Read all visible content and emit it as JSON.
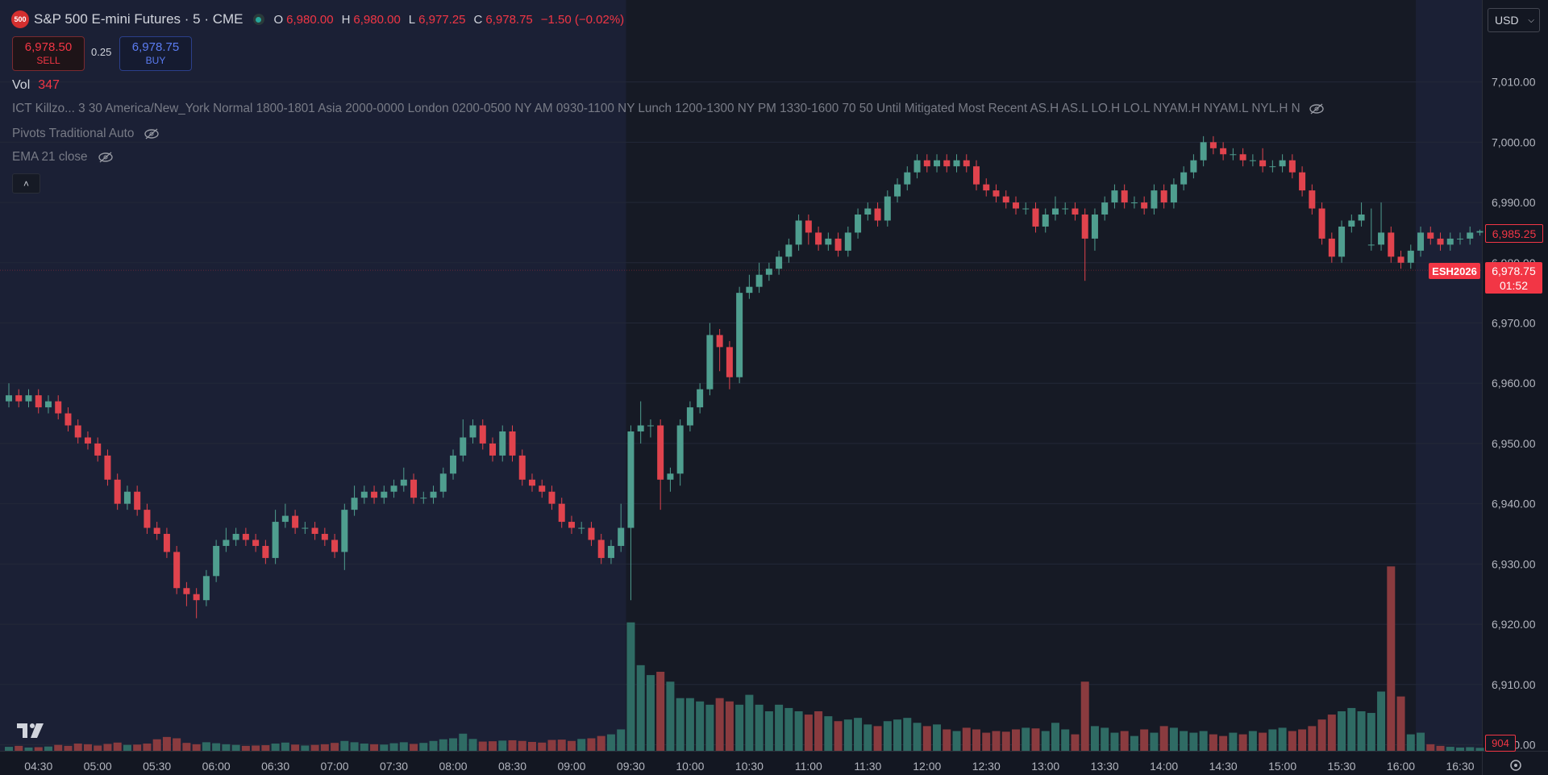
{
  "header": {
    "logo": "500",
    "symbol": "S&P 500 E-mini Futures · 5 · CME",
    "o_label": "O",
    "o": "6,980.00",
    "h_label": "H",
    "h": "6,980.00",
    "l_label": "L",
    "l": "6,977.25",
    "c_label": "C",
    "c": "6,978.75",
    "change": "−1.50 (−0.02%)",
    "currency": "USD"
  },
  "trade": {
    "sell_price": "6,978.50",
    "sell": "SELL",
    "spread": "0.25",
    "buy_price": "6,978.75",
    "buy": "BUY"
  },
  "indicators": {
    "vol_label": "Vol",
    "vol_value": 347,
    "ict": "ICT Killzo... 3 30 America/New_York Normal 1800-1801 Asia 2000-0000 London 0200-0500 NY AM 0930-1100 NY Lunch 1200-1300 NY PM 1330-1600 70 50 Until Mitigated Most Recent AS.H AS.L LO.H LO.L NYAM.H NYAM.L NYL.H N",
    "pivots": "Pivots Traditional Auto",
    "ema": "EMA 21 close"
  },
  "chart_data": {
    "type": "candlestick",
    "categories": [
      null,
      null,
      null,
      "04:30",
      null,
      null,
      null,
      null,
      null,
      "05:00",
      null,
      null,
      null,
      null,
      null,
      "05:30",
      null,
      null,
      null,
      null,
      null,
      "06:00",
      null,
      null,
      null,
      null,
      null,
      "06:30",
      null,
      null,
      null,
      null,
      null,
      "07:00",
      null,
      null,
      null,
      null,
      null,
      "07:30",
      null,
      null,
      null,
      null,
      null,
      "08:00",
      null,
      null,
      null,
      null,
      null,
      "08:30",
      null,
      null,
      null,
      null,
      null,
      "09:00",
      null,
      null,
      null,
      null,
      null,
      "09:30",
      null,
      null,
      null,
      null,
      null,
      "10:00",
      null,
      null,
      null,
      null,
      null,
      "10:30",
      null,
      null,
      null,
      null,
      null,
      "11:00",
      null,
      null,
      null,
      null,
      null,
      "11:30",
      null,
      null,
      null,
      null,
      null,
      "12:00",
      null,
      null,
      null,
      null,
      null,
      "12:30",
      null,
      null,
      null,
      null,
      null,
      "13:00",
      null,
      null,
      null,
      null,
      null,
      "13:30",
      null,
      null,
      null,
      null,
      null,
      "14:00",
      null,
      null,
      null,
      null,
      null,
      "14:30",
      null,
      null,
      null,
      null,
      null,
      "15:00",
      null,
      null,
      null,
      null,
      null,
      "15:30",
      null,
      null,
      null,
      null,
      null,
      "16:00",
      null,
      null,
      null,
      null,
      null,
      "16:30",
      null,
      null
    ],
    "open": [
      6957,
      6958,
      6957,
      6958,
      6956,
      6957,
      6955,
      6953,
      6951,
      6950,
      6948,
      6944,
      6940,
      6942,
      6939,
      6936,
      6935,
      6932,
      6926,
      6925,
      6924,
      6928,
      6933,
      6934,
      6935,
      6934,
      6933,
      6931,
      6937,
      6938,
      6936,
      6936,
      6935,
      6934,
      6932,
      6939,
      6941,
      6942,
      6941,
      6942,
      6943,
      6944,
      6941,
      6941,
      6942,
      6945,
      6948,
      6951,
      6953,
      6950,
      6948,
      6952,
      6948,
      6944,
      6943,
      6942,
      6940,
      6937,
      6936,
      6936,
      6934,
      6931,
      6933,
      6936,
      6952,
      6953,
      6953,
      6944,
      6945,
      6953,
      6956,
      6959,
      6968,
      6966,
      6961,
      6975,
      6976,
      6978,
      6979,
      6981,
      6983,
      6987,
      6985,
      6983,
      6984,
      6982,
      6985,
      6988,
      6989,
      6987,
      6991,
      6993,
      6995,
      6997,
      6996,
      6997,
      6996,
      6997,
      6996,
      6993,
      6992,
      6991,
      6990,
      6989,
      6989,
      6986,
      6988,
      6989,
      6989,
      6988,
      6984,
      6988,
      6990,
      6992,
      6990,
      6990,
      6989,
      6992,
      6990,
      6993,
      6995,
      6997,
      7000,
      6999,
      6998,
      6998,
      6997,
      6997,
      6996,
      6996,
      6997,
      6995,
      6992,
      6989,
      6984,
      6981,
      6986,
      6987,
      6983,
      6983,
      6985,
      6981,
      6980,
      6982,
      6985,
      6984,
      6983,
      6984,
      6984,
      6985
    ],
    "high": [
      6960,
      6959,
      6959,
      6959,
      6958,
      6958,
      6956,
      6954,
      6952,
      6951,
      6949,
      6945,
      6943,
      6943,
      6940,
      6937,
      6936,
      6933,
      6927,
      6926,
      6929,
      6934,
      6936,
      6936,
      6936,
      6935,
      6934,
      6939,
      6940,
      6939,
      6937,
      6937,
      6936,
      6935,
      6940,
      6943,
      6943,
      6943,
      6943,
      6944,
      6946,
      6945,
      6942,
      6943,
      6946,
      6949,
      6954,
      6954,
      6954,
      6951,
      6953,
      6953,
      6949,
      6945,
      6944,
      6943,
      6941,
      6938,
      6937,
      6937,
      6935,
      6934,
      6940,
      6953,
      6957,
      6954,
      6954,
      6946,
      6954,
      6957,
      6960,
      6970,
      6969,
      6967,
      6976,
      6978,
      6980,
      6980,
      6982,
      6984,
      6988,
      6988,
      6986,
      6985,
      6985,
      6986,
      6989,
      6990,
      6990,
      6992,
      6994,
      6996,
      6998,
      6998,
      6998,
      6998,
      6998,
      6998,
      6997,
      6994,
      6993,
      6992,
      6991,
      6990,
      6990,
      6989,
      6991,
      6990,
      6990,
      6989,
      6989,
      6991,
      6993,
      6993,
      6991,
      6991,
      6993,
      6993,
      6994,
      6996,
      6998,
      7001,
      7001,
      7000,
      6999,
      6999,
      6998,
      6999,
      6997,
      6998,
      6998,
      6996,
      6993,
      6990,
      6985,
      6987,
      6988,
      6990,
      6989,
      6990,
      6986,
      6982,
      6983,
      6986,
      6986,
      6985,
      6985,
      6985,
      6986,
      6985.5
    ],
    "low": [
      6956,
      6956,
      6956,
      6955,
      6955,
      6954,
      6952,
      6950,
      6949,
      6947,
      6943,
      6939,
      6939,
      6938,
      6935,
      6934,
      6931,
      6925,
      6923,
      6921,
      6923,
      6927,
      6932,
      6933,
      6933,
      6932,
      6930,
      6930,
      6936,
      6935,
      6935,
      6934,
      6933,
      6931,
      6929,
      6938,
      6940,
      6940,
      6940,
      6941,
      6942,
      6940,
      6940,
      6940,
      6941,
      6944,
      6947,
      6950,
      6949,
      6947,
      6947,
      6947,
      6943,
      6942,
      6941,
      6939,
      6936,
      6935,
      6935,
      6933,
      6930,
      6930,
      6932,
      6924,
      6950,
      6951,
      6939,
      6942,
      6943,
      6952,
      6955,
      6958,
      6962,
      6959,
      6960,
      6974,
      6975,
      6977,
      6978,
      6980,
      6982,
      6983,
      6982,
      6982,
      6981,
      6981,
      6984,
      6987,
      6986,
      6986,
      6990,
      6992,
      6994,
      6995,
      6995,
      6995,
      6995,
      6995,
      6992,
      6991,
      6990,
      6989,
      6988,
      6988,
      6985,
      6985,
      6987,
      6988,
      6987,
      6977,
      6982,
      6987,
      6989,
      6989,
      6989,
      6988,
      6988,
      6989,
      6989,
      6992,
      6994,
      6996,
      6998,
      6997,
      6997,
      6996,
      6996,
      6995,
      6995,
      6995,
      6994,
      6991,
      6988,
      6983,
      6980,
      6980,
      6985,
      6986,
      6982,
      6982,
      6980,
      6979,
      6979,
      6981,
      6983,
      6982,
      6982,
      6983,
      6983,
      6984.5
    ],
    "close": [
      6958,
      6957,
      6958,
      6956,
      6957,
      6955,
      6953,
      6951,
      6950,
      6948,
      6944,
      6940,
      6942,
      6939,
      6936,
      6935,
      6932,
      6926,
      6925,
      6924,
      6928,
      6933,
      6934,
      6935,
      6934,
      6933,
      6931,
      6937,
      6938,
      6936,
      6936,
      6935,
      6934,
      6932,
      6939,
      6941,
      6942,
      6941,
      6942,
      6943,
      6944,
      6941,
      6941,
      6942,
      6945,
      6948,
      6951,
      6953,
      6950,
      6948,
      6952,
      6948,
      6944,
      6943,
      6942,
      6940,
      6937,
      6936,
      6936,
      6934,
      6931,
      6933,
      6936,
      6952,
      6953,
      6953,
      6944,
      6945,
      6953,
      6956,
      6959,
      6968,
      6966,
      6961,
      6975,
      6976,
      6978,
      6979,
      6981,
      6983,
      6987,
      6985,
      6983,
      6984,
      6982,
      6985,
      6988,
      6989,
      6987,
      6991,
      6993,
      6995,
      6997,
      6996,
      6997,
      6996,
      6997,
      6996,
      6993,
      6992,
      6991,
      6990,
      6989,
      6989,
      6986,
      6988,
      6989,
      6989,
      6988,
      6984,
      6988,
      6990,
      6992,
      6990,
      6990,
      6989,
      6992,
      6990,
      6993,
      6995,
      6997,
      7000,
      6999,
      6998,
      6998,
      6997,
      6997,
      6996,
      6996,
      6997,
      6995,
      6992,
      6989,
      6984,
      6981,
      6986,
      6987,
      6988,
      6983,
      6985,
      6981,
      6980,
      6982,
      6985,
      6984,
      6983,
      6984,
      6984,
      6985,
      6985.25
    ],
    "volume": [
      1200,
      1500,
      1000,
      1100,
      1300,
      1800,
      1500,
      2200,
      2000,
      1600,
      2100,
      2500,
      1800,
      1900,
      2200,
      3500,
      4200,
      3800,
      2400,
      2000,
      2600,
      2300,
      2000,
      1800,
      1500,
      1600,
      1700,
      2200,
      2500,
      1900,
      1600,
      1800,
      2000,
      2400,
      3000,
      2600,
      2200,
      2000,
      1900,
      2300,
      2600,
      2100,
      2400,
      3000,
      3500,
      3800,
      5200,
      3600,
      2800,
      2900,
      3100,
      3200,
      3000,
      2700,
      2500,
      3300,
      3400,
      3000,
      3600,
      3800,
      4500,
      5000,
      6500,
      39000,
      26000,
      23000,
      24000,
      21000,
      16000,
      16000,
      15000,
      14000,
      16000,
      15000,
      14000,
      17000,
      14000,
      12000,
      14000,
      13000,
      12000,
      11000,
      12000,
      10500,
      9000,
      9500,
      10000,
      8000,
      7500,
      9000,
      9500,
      10000,
      8500,
      7500,
      8000,
      6500,
      6000,
      7000,
      6500,
      5500,
      6000,
      5800,
      6500,
      7000,
      6800,
      6000,
      8500,
      6500,
      5000,
      21000,
      7500,
      7000,
      5500,
      6000,
      4500,
      6500,
      5500,
      7500,
      7000,
      6000,
      5500,
      6000,
      5000,
      4500,
      5500,
      5000,
      6000,
      5500,
      6500,
      7000,
      6000,
      6500,
      7500,
      9500,
      11000,
      12000,
      13000,
      12000,
      11500,
      18000,
      56000,
      16500,
      5000,
      5500,
      2000,
      1500,
      1200,
      1000,
      1100,
      904
    ],
    "ylim": [
      6899,
      7023.6
    ],
    "yticks": [
      {
        "value": 6900,
        "label": "6,900.00"
      },
      {
        "value": 6910,
        "label": "6,910.00"
      },
      {
        "value": 6920,
        "label": "6,920.00"
      },
      {
        "value": 6930,
        "label": "6,930.00"
      },
      {
        "value": 6940,
        "label": "6,940.00"
      },
      {
        "value": 6950,
        "label": "6,950.00"
      },
      {
        "value": 6960,
        "label": "6,960.00"
      },
      {
        "value": 6970,
        "label": "6,970.00"
      },
      {
        "value": 6980,
        "label": "6,980.00"
      },
      {
        "value": 6990,
        "label": "6,990.00"
      },
      {
        "value": 7000,
        "label": "7,000.00"
      },
      {
        "value": 7010,
        "label": "7,010.00"
      }
    ],
    "vlim": [
      0,
      228000
    ],
    "grid": true,
    "up_color": "#4f9e8f",
    "down_color": "#e0434d",
    "volume_up_color": "#2f6b64",
    "volume_down_color": "#8a3b3f",
    "last_price": {
      "value": 6985.25,
      "label": "6,985.25"
    },
    "current_price": {
      "value": 6978.75,
      "label": "6,978.75"
    },
    "contract": "ESH2026",
    "countdown": "01:52"
  }
}
